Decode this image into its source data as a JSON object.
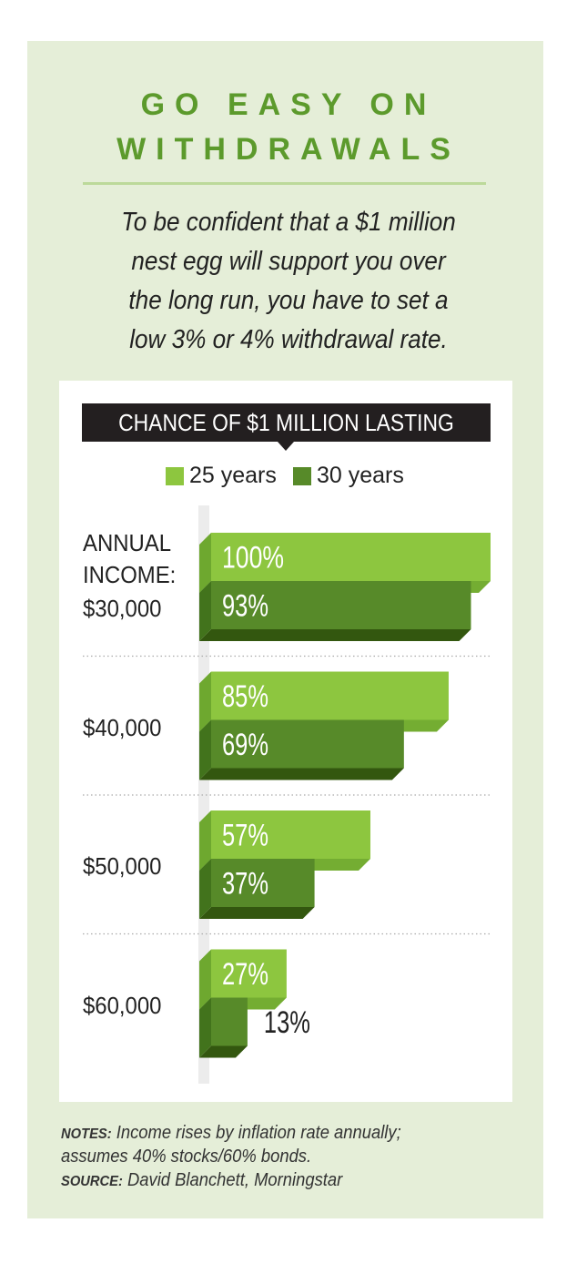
{
  "title_lines": [
    "GO EASY ON",
    "WITHDRAWALS"
  ],
  "subtitle_lines": [
    "To be confident that a $1 million",
    "nest egg will support you over",
    "the long run, you have to set a",
    "low 3% or 4% withdrawal rate."
  ],
  "colors": {
    "light": "#8dc63f",
    "dark": "#578a29",
    "title": "#5c9a2c"
  },
  "chart_data": {
    "type": "bar",
    "orientation": "horizontal",
    "title": "CHANCE OF $1 MILLION LASTING",
    "ylabel": "ANNUAL INCOME:",
    "categories": [
      "$30,000",
      "$40,000",
      "$50,000",
      "$60,000"
    ],
    "series": [
      {
        "name": "25 years",
        "values": [
          100,
          85,
          57,
          27
        ],
        "labels": [
          "100%",
          "85%",
          "57%",
          "27%"
        ]
      },
      {
        "name": "30 years",
        "values": [
          93,
          69,
          37,
          13
        ],
        "labels": [
          "93%",
          "69%",
          "37%",
          "13%"
        ]
      }
    ],
    "xlim": [
      0,
      100
    ]
  },
  "notes": {
    "notes_label": "NOTES:",
    "notes_text": "Income rises by inflation rate annually;",
    "notes_text2": "assumes 40% stocks/60% bonds.",
    "source_label": "SOURCE:",
    "source_text": "David Blanchett, Morningstar"
  }
}
